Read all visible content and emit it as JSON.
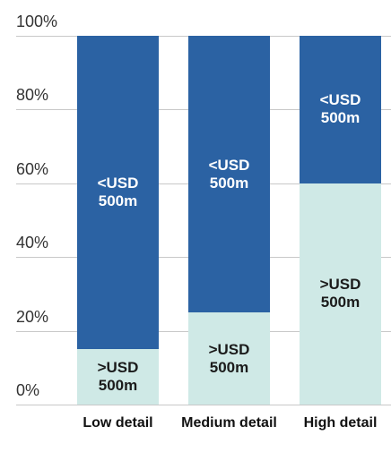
{
  "chart_data": {
    "type": "stacked_bar",
    "categories": [
      "Low detail",
      "Medium detail",
      "High detail"
    ],
    "series": [
      {
        "name": ">USD 500m",
        "color": "#cfe9e6",
        "values": [
          15,
          25,
          60
        ]
      },
      {
        "name": "<USD 500m",
        "color": "#2b62a3",
        "values": [
          85,
          75,
          40
        ]
      }
    ],
    "ylim": [
      0,
      100
    ],
    "yticks": [
      {
        "value": 0,
        "label": "0%"
      },
      {
        "value": 20,
        "label": "20%"
      },
      {
        "value": 40,
        "label": "40%"
      },
      {
        "value": 60,
        "label": "60%"
      },
      {
        "value": 80,
        "label": "80%"
      },
      {
        "value": 100,
        "label": "100%"
      }
    ],
    "grid": true
  }
}
